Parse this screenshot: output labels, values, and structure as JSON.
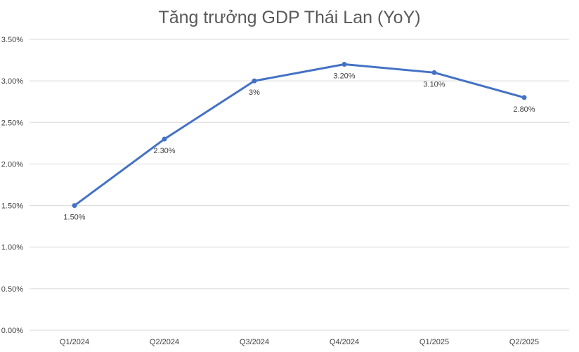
{
  "chart_data": {
    "type": "line",
    "title": "Tăng trưởng GDP Thái Lan (YoY)",
    "categories": [
      "Q1/2024",
      "Q2/2024",
      "Q3/2024",
      "Q4/2024",
      "Q1/2025",
      "Q2/2025"
    ],
    "series": [
      {
        "values": [
          1.5,
          2.3,
          3.0,
          3.2,
          3.1,
          2.8
        ],
        "data_labels": [
          "1.50%",
          "2.30%",
          "3%",
          "3.20%",
          "3.10%",
          "2.80%"
        ],
        "color": "#4472c4"
      }
    ],
    "ylim": [
      0,
      3.5
    ],
    "y_ticks": [
      0,
      0.5,
      1.0,
      1.5,
      2.0,
      2.5,
      3.0,
      3.5
    ],
    "y_tick_labels": [
      "0.00%",
      "0.50%",
      "1.00%",
      "1.50%",
      "2.00%",
      "2.50%",
      "3.00%",
      "3.50%"
    ],
    "grid": true,
    "legend": "none"
  }
}
